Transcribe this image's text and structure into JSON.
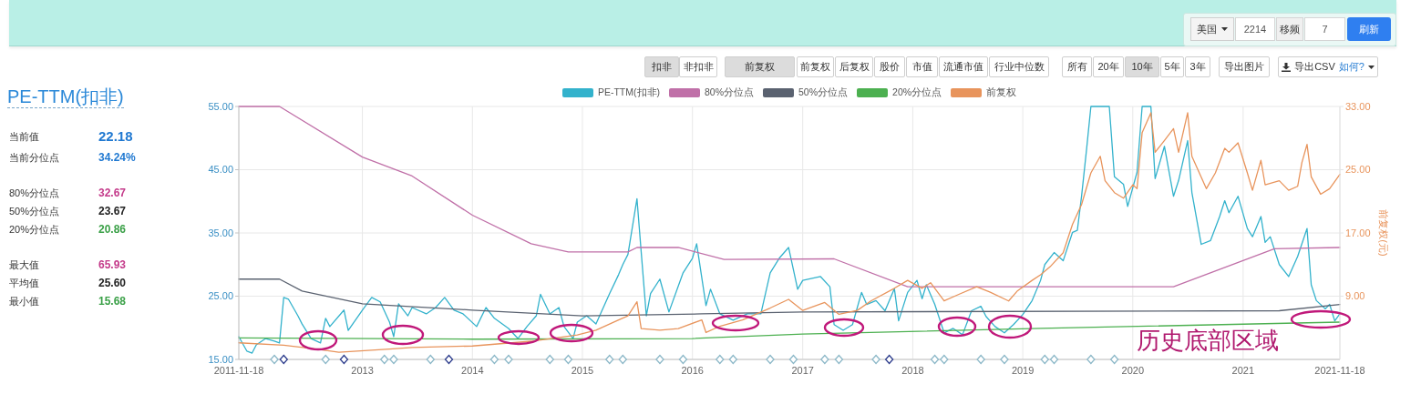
{
  "chart_data": [
    {
      "type": "other",
      "annotations": [
        "扣非",
        "非扣非",
        "前复权",
        "前复权",
        "后复权",
        "股价",
        "市值",
        "流通市值",
        "行业中位数",
        "所有",
        "20年",
        "10年",
        "5年",
        "3年",
        "导出图片",
        "导出CSV",
        "如何?",
        "美国",
        "2214",
        "移频",
        "7",
        "刷新"
      ]
    },
    {
      "type": "other",
      "title": "PE-TTM(扣非)",
      "annotations": [
        "当前值",
        "22.18",
        "当前分位点",
        "34.24%",
        "80%分位点",
        "32.67",
        "50%分位点",
        "23.67",
        "20%分位点",
        "20.86",
        "最大值",
        "65.93",
        "平均值",
        "25.60",
        "最小值",
        "15.68"
      ]
    },
    {
      "type": "line",
      "xlim": [
        "2011-11-18",
        "2021-11-18"
      ],
      "xticks": [
        "2011-11-18",
        "2013",
        "2014",
        "2015",
        "2016",
        "2017",
        "2018",
        "2019",
        "2020",
        "2021",
        "2021-11-18"
      ],
      "ylim": [
        15,
        55
      ],
      "yticks": [
        {
          "value": 15,
          "label": "15.00"
        },
        {
          "value": 25,
          "label": "25.00"
        },
        {
          "value": 35,
          "label": "35.00"
        },
        {
          "value": 45,
          "label": "45.00"
        },
        {
          "value": 55,
          "label": "55.00"
        }
      ],
      "y2lim": [
        1,
        33
      ],
      "y2ticks": [
        {
          "value": 9,
          "label": "9.00"
        },
        {
          "value": 17,
          "label": "17.00"
        },
        {
          "value": 25,
          "label": "25.00"
        },
        {
          "value": 33,
          "label": "33.00"
        }
      ],
      "y2label": "前复权(元)",
      "grid": true,
      "legend": "top",
      "annotations": [
        "历史底部区域"
      ],
      "series": [
        {
          "name": "PE-TTM(扣非)",
          "color": "#33b2cc",
          "x": [
            "2011-11-18",
            "2011-12-15",
            "2012-01-01",
            "2012-01-15",
            "2012-02-15",
            "2012-03-15",
            "2012-04-01",
            "2012-04-15",
            "2012-05-01",
            "2012-06-01",
            "2012-06-15",
            "2012-07-15",
            "2012-08-15",
            "2012-09-01",
            "2012-09-15",
            "2012-11-01",
            "2012-11-15",
            "2013-01-01",
            "2013-02-01",
            "2013-03-01",
            "2013-04-01",
            "2013-04-15",
            "2013-05-01",
            "2013-06-01",
            "2013-06-15",
            "2013-08-01",
            "2013-09-01",
            "2013-10-01",
            "2013-11-01",
            "2013-12-01",
            "2014-01-15",
            "2014-02-15",
            "2014-03-15",
            "2014-05-01",
            "2014-06-01",
            "2014-07-01",
            "2014-08-01",
            "2014-08-15",
            "2014-09-15",
            "2014-10-15",
            "2014-11-01",
            "2014-12-01",
            "2014-12-15",
            "2015-01-15",
            "2015-02-15",
            "2015-04-01",
            "2015-05-01",
            "2015-05-15",
            "2015-06-01",
            "2015-07-01",
            "2015-07-15",
            "2015-08-01",
            "2015-08-15",
            "2015-09-15",
            "2015-10-15",
            "2015-12-01",
            "2016-01-01",
            "2016-01-15",
            "2016-02-15",
            "2016-03-01",
            "2016-04-01",
            "2016-05-15",
            "2016-07-01",
            "2016-08-15",
            "2016-09-15",
            "2016-10-15",
            "2016-11-15",
            "2016-12-15",
            "2017-01-01",
            "2017-03-01",
            "2017-04-01",
            "2017-04-15",
            "2017-05-15",
            "2017-06-15",
            "2017-07-15",
            "2017-08-01",
            "2017-09-01",
            "2017-10-01",
            "2017-11-01",
            "2017-11-15",
            "2017-12-15",
            "2018-01-15",
            "2018-02-01",
            "2018-02-15",
            "2018-03-15",
            "2018-04-15",
            "2018-05-15",
            "2018-06-15",
            "2018-07-15",
            "2018-08-15",
            "2018-09-01",
            "2018-10-01",
            "2018-11-01",
            "2018-12-01",
            "2019-01-01",
            "2019-02-01",
            "2019-03-01",
            "2019-03-15",
            "2019-04-15",
            "2019-05-15",
            "2019-06-15",
            "2019-07-01",
            "2019-07-15",
            "2019-08-01",
            "2019-08-15",
            "2019-10-01",
            "2019-10-15",
            "2019-11-01",
            "2019-12-01",
            "2019-12-15",
            "2020-01-15",
            "2020-02-01",
            "2020-03-01",
            "2020-03-15",
            "2020-04-15",
            "2020-05-15",
            "2020-06-01",
            "2020-07-01",
            "2020-07-15",
            "2020-08-15",
            "2020-09-15",
            "2020-10-15",
            "2020-11-01",
            "2020-11-15",
            "2020-12-15",
            "2021-01-15",
            "2021-02-01",
            "2021-03-01",
            "2021-03-15",
            "2021-04-01",
            "2021-05-01",
            "2021-06-01",
            "2021-07-01",
            "2021-08-01",
            "2021-08-15",
            "2021-09-01",
            "2021-10-01",
            "2021-10-15",
            "2021-11-01",
            "2021-11-18"
          ],
          "values": [
            18.6,
            16.3,
            16.0,
            17.3,
            18.3,
            17.9,
            17.6,
            24.8,
            24.5,
            21.9,
            20.6,
            18.3,
            17.6,
            21.5,
            20.2,
            22.8,
            19.6,
            22.8,
            24.8,
            24.1,
            20.9,
            18.6,
            23.8,
            21.9,
            23.2,
            22.2,
            23.2,
            24.8,
            22.8,
            22.2,
            20.2,
            23.2,
            21.5,
            19.9,
            18.3,
            20.2,
            21.9,
            25.3,
            22.2,
            23.2,
            20.2,
            18.3,
            20.9,
            21.9,
            20.6,
            25.4,
            28.4,
            30.0,
            31.6,
            40.4,
            32.0,
            21.9,
            25.4,
            27.7,
            22.5,
            28.7,
            31.0,
            33.3,
            23.5,
            26.1,
            22.2,
            21.2,
            22.2,
            22.2,
            28.7,
            31.0,
            32.7,
            26.1,
            27.5,
            28.1,
            26.5,
            20.5,
            19.6,
            20.5,
            25.6,
            23.7,
            24.3,
            22.7,
            26.2,
            21.1,
            25.6,
            27.5,
            24.6,
            26.8,
            23.7,
            19.2,
            19.9,
            18.9,
            22.7,
            23.4,
            21.8,
            20.2,
            19.2,
            20.5,
            22.1,
            24.3,
            27.5,
            30.0,
            31.9,
            30.6,
            35.1,
            35.4,
            40.8,
            48.4,
            55,
            55,
            55,
            43.9,
            42.7,
            39.2,
            44.6,
            55,
            55,
            43.6,
            48.7,
            40.8,
            43.3,
            49.6,
            41.4,
            33.2,
            33.8,
            37.6,
            40.1,
            38.2,
            40.8,
            35.7,
            34.4,
            37.6,
            33.5,
            34.4,
            30.0,
            28.1,
            31.3,
            35.7,
            26.8,
            24.3,
            23.0,
            23.7,
            21.1,
            22.2
          ]
        },
        {
          "name": "80%分位点",
          "color": "#c070a8",
          "x": [
            "2011-11-18",
            "2012-04-01",
            "2013-01-01",
            "2013-06-15",
            "2014-01-01",
            "2014-07-15",
            "2014-11-15",
            "2015-06-01",
            "2015-07-01",
            "2015-11-15",
            "2016-04-15",
            "2017-04-15",
            "2017-12-15",
            "2020-05-15",
            "2021-04-15",
            "2021-11-18"
          ],
          "values": [
            55,
            55,
            47.0,
            44.0,
            37.8,
            33.3,
            32.0,
            32.0,
            32.7,
            32.7,
            30.8,
            30.9,
            26.5,
            26.5,
            32.5,
            32.7
          ]
        },
        {
          "name": "50%分位点",
          "color": "#5a6270",
          "x": [
            "2011-11-18",
            "2012-04-01",
            "2012-06-15",
            "2013-01-01",
            "2014-01-01",
            "2015-01-01",
            "2016-02-01",
            "2017-01-01",
            "2021-05-01",
            "2021-11-18"
          ],
          "values": [
            27.7,
            27.7,
            25.8,
            23.8,
            22.8,
            21.9,
            22.2,
            22.5,
            22.7,
            23.7
          ]
        },
        {
          "name": "20%分位点",
          "color": "#4cb050",
          "x": [
            "2011-11-18",
            "2014-01-01",
            "2016-01-01",
            "2017-01-01",
            "2019-03-01",
            "2021-11-18"
          ],
          "values": [
            18.4,
            18.2,
            18.3,
            19.0,
            19.9,
            20.9
          ]
        },
        {
          "name": "前复权",
          "color": "#e8945c",
          "axis": "y2",
          "x": [
            "2011-11-18",
            "2012-04-15",
            "2012-08-01",
            "2012-10-15",
            "2013-04-01",
            "2013-06-15",
            "2014-01-01",
            "2014-07-15",
            "2014-12-15",
            "2015-02-15",
            "2015-05-01",
            "2015-06-01",
            "2015-07-01",
            "2015-07-15",
            "2015-09-15",
            "2015-11-15",
            "2016-02-01",
            "2016-02-15",
            "2016-04-01",
            "2016-06-15",
            "2016-09-15",
            "2016-11-15",
            "2017-01-01",
            "2017-03-15",
            "2017-05-01",
            "2017-07-01",
            "2017-08-15",
            "2017-11-01",
            "2017-12-15",
            "2018-02-01",
            "2018-03-01",
            "2018-04-15",
            "2018-06-01",
            "2018-08-01",
            "2018-09-15",
            "2018-11-15",
            "2018-12-15",
            "2019-02-01",
            "2019-03-01",
            "2019-04-01",
            "2019-05-15",
            "2019-06-15",
            "2019-07-15",
            "2019-08-15",
            "2019-09-15",
            "2019-10-01",
            "2019-11-01",
            "2019-12-01",
            "2020-01-01",
            "2020-01-15",
            "2020-02-01",
            "2020-03-01",
            "2020-03-15",
            "2020-04-15",
            "2020-05-15",
            "2020-06-01",
            "2020-07-01",
            "2020-07-15",
            "2020-09-01",
            "2020-10-01",
            "2020-11-01",
            "2020-11-15",
            "2020-12-15",
            "2021-01-15",
            "2021-02-01",
            "2021-03-01",
            "2021-03-15",
            "2021-05-01",
            "2021-06-01",
            "2021-07-01",
            "2021-07-15",
            "2021-08-01",
            "2021-08-15",
            "2021-09-15",
            "2021-10-15",
            "2021-11-18"
          ],
          "values": [
            3.1,
            2.8,
            2.3,
            1.9,
            2.3,
            2.5,
            2.7,
            3.3,
            4.1,
            4.7,
            6.0,
            6.5,
            8.3,
            4.9,
            4.7,
            4.9,
            6.0,
            4.4,
            5.2,
            6.0,
            7.5,
            8.6,
            7.2,
            8.2,
            6.7,
            7.2,
            8.4,
            10.0,
            11.0,
            10.0,
            10.7,
            8.4,
            9.2,
            10.2,
            9.5,
            8.4,
            9.7,
            11.0,
            11.7,
            12.7,
            14.5,
            18.1,
            20.6,
            24.6,
            26.7,
            23.6,
            22.1,
            21.4,
            23.1,
            22.6,
            29.7,
            32.2,
            27.2,
            28.7,
            30.2,
            27.2,
            32.2,
            26.7,
            22.6,
            24.6,
            27.7,
            27.2,
            28.4,
            24.6,
            22.4,
            26.2,
            23.1,
            23.6,
            22.4,
            22.9,
            25.9,
            28.2,
            24.1,
            21.9,
            22.6,
            24.4
          ]
        },
        {
          "type": "scatter",
          "marker": "diamond",
          "color": "#8cb8c8",
          "x": [
            "2012-03-15",
            "2012-09-01",
            "2013-03-15",
            "2013-04-15",
            "2013-08-15",
            "2014-03-15",
            "2014-05-01",
            "2014-09-15",
            "2014-11-15",
            "2015-04-01",
            "2015-05-15",
            "2015-09-15",
            "2015-12-01",
            "2016-04-01",
            "2016-05-15",
            "2016-09-15",
            "2016-12-01",
            "2017-03-15",
            "2017-05-01",
            "2017-09-01",
            "2018-03-15",
            "2018-04-15",
            "2018-08-15",
            "2018-11-01",
            "2019-03-15",
            "2019-04-15",
            "2019-08-15",
            "2019-11-01"
          ],
          "values": [
            15,
            15,
            15,
            15,
            15,
            15,
            15,
            15,
            15,
            15,
            15,
            15,
            15,
            15,
            15,
            15,
            15,
            15,
            15,
            15,
            15,
            15,
            15,
            15,
            15,
            15,
            15,
            15
          ]
        },
        {
          "type": "scatter",
          "marker": "diamond",
          "color": "#2c3c8c",
          "x": [
            "2012-04-15",
            "2012-11-01",
            "2013-10-15",
            "2017-10-15"
          ],
          "values": [
            15,
            15,
            15,
            15
          ]
        }
      ]
    }
  ]
}
